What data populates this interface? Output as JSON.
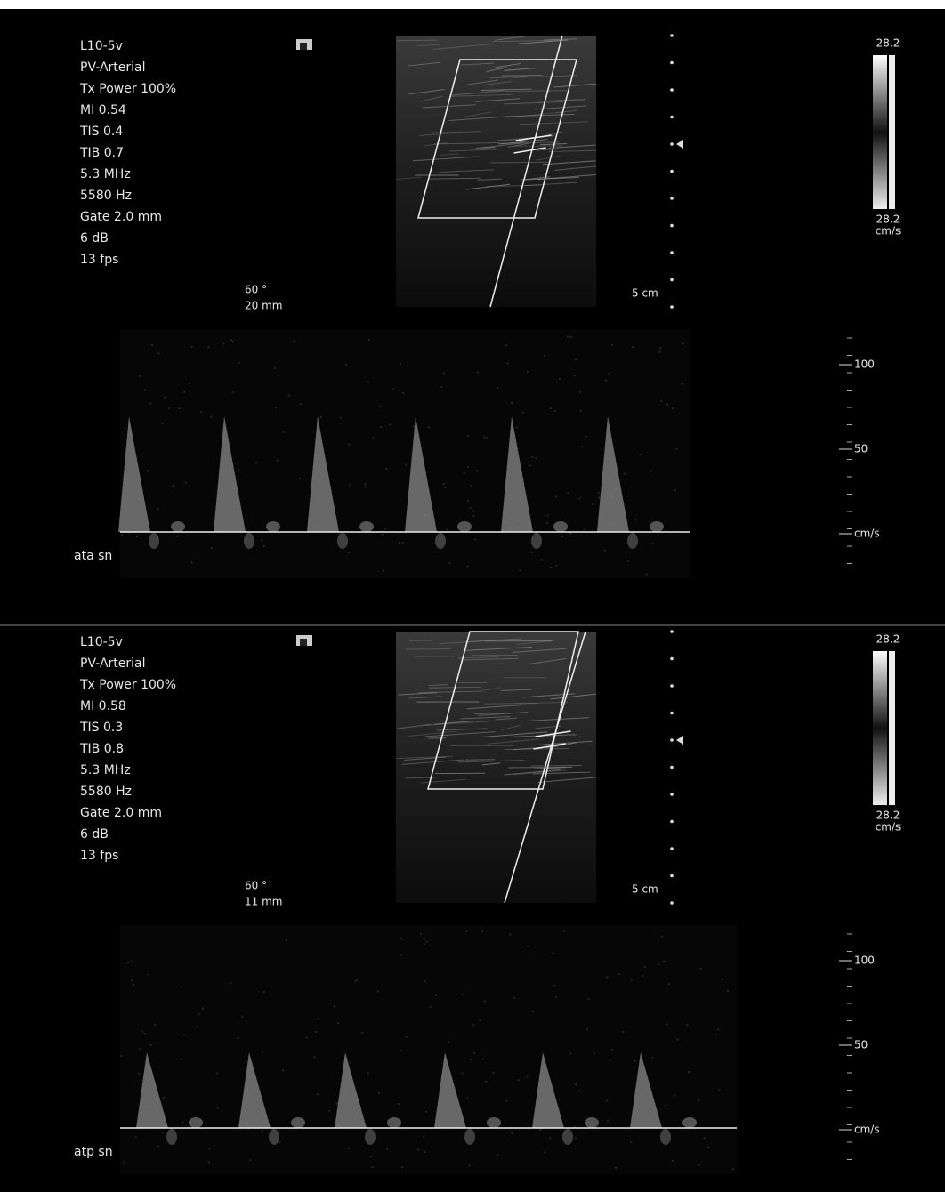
{
  "panels": [
    {
      "params": [
        "L10-5v",
        "PV-Arterial",
        "Tx Power 100%",
        "MI 0.54",
        "TIS 0.4",
        "TIB 0.7",
        "5.3 MHz",
        "5580 Hz",
        "Gate 2.0 mm",
        "6 dB",
        "13 fps"
      ],
      "angle": "60 °",
      "gate_depth": "20 mm",
      "depth": "5 cm",
      "color_scale_top": "28.2",
      "color_scale_bottom": "28.2",
      "color_scale_unit": "cm/s",
      "velocity_ticks": [
        "100",
        "50"
      ],
      "velocity_unit": "cm/s",
      "label": "ata sn"
    },
    {
      "params": [
        "L10-5v",
        "PV-Arterial",
        "Tx Power 100%",
        "MI 0.58",
        "TIS 0.3",
        "TIB 0.8",
        "5.3 MHz",
        "5580 Hz",
        "Gate 2.0 mm",
        "6 dB",
        "13 fps"
      ],
      "angle": "60 °",
      "gate_depth": "11 mm",
      "depth": "5 cm",
      "color_scale_top": "28.2",
      "color_scale_bottom": "28.2",
      "color_scale_unit": "cm/s",
      "velocity_ticks": [
        "100",
        "50"
      ],
      "velocity_unit": "cm/s",
      "label": "atp sn"
    }
  ]
}
